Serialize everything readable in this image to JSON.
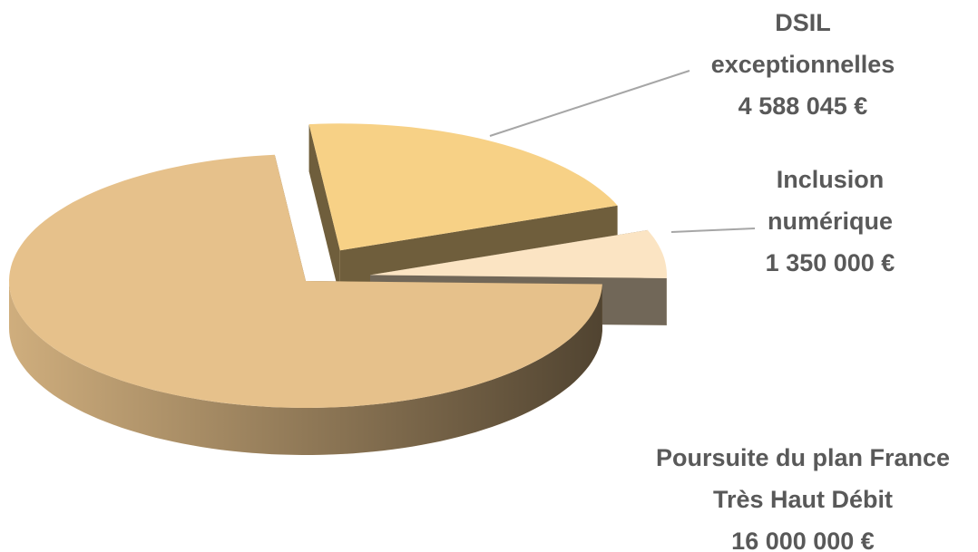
{
  "chart_data": {
    "type": "pie",
    "categories": [
      "DSIL exceptionnelles",
      "Inclusion numérique",
      "Poursuite du plan France Très Haut Débit"
    ],
    "values": [
      4588045,
      1350000,
      16000000
    ],
    "value_labels": [
      "4 588 045 €",
      "1 350 000 €",
      "16 000 000 €"
    ],
    "colors": [
      "#f7d186",
      "#fbe4c3",
      "#e6c18b"
    ],
    "three_d": true
  }
}
